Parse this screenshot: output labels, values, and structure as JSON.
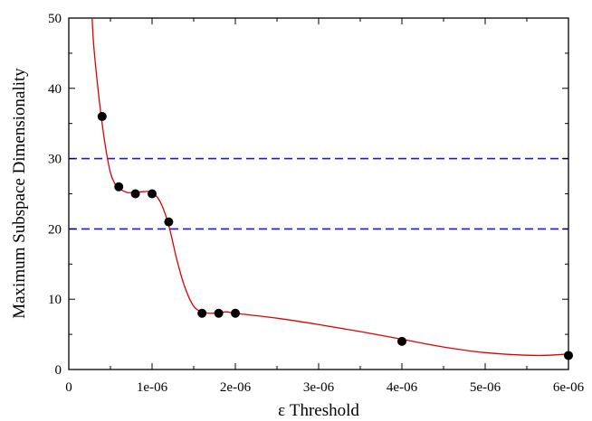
{
  "chart_data": {
    "type": "scatter",
    "xlabel": "ε  Threshold",
    "ylabel": "Maximum Subspace Dimensionality",
    "xlim": [
      0,
      6e-06
    ],
    "ylim": [
      0,
      50
    ],
    "x_ticks": [
      0,
      1e-06,
      2e-06,
      3e-06,
      4e-06,
      5e-06,
      6e-06
    ],
    "x_tick_labels": [
      "0",
      "1e-06",
      "2e-06",
      "3e-06",
      "4e-06",
      "5e-06",
      "6e-06"
    ],
    "y_ticks": [
      0,
      10,
      20,
      30,
      40,
      50
    ],
    "y_tick_labels": [
      "0",
      "10",
      "20",
      "30",
      "40",
      "50"
    ],
    "grid": false,
    "legend": "none",
    "series": [
      {
        "kind": "points",
        "color": "#000000",
        "x": [
          4e-07,
          6e-07,
          8e-07,
          1e-06,
          1.2e-06,
          1.6e-06,
          1.8e-06,
          2e-06,
          4e-06,
          6e-06
        ],
        "y": [
          36,
          26,
          25,
          25,
          21,
          8,
          8,
          8,
          4,
          2
        ]
      },
      {
        "kind": "curve",
        "color": "#e00000",
        "x": [
          2.8e-07,
          3e-07,
          3.5e-07,
          4e-07,
          4.5e-07,
          5e-07,
          5.5e-07,
          6e-07,
          7e-07,
          8e-07,
          9e-07,
          1e-06,
          1.1e-06,
          1.2e-06,
          1.3e-06,
          1.4e-06,
          1.5e-06,
          1.6e-06,
          1.7e-06,
          1.8e-06,
          1.9e-06,
          2e-06,
          2.5e-06,
          3e-06,
          3.5e-06,
          4e-06,
          4.5e-06,
          5e-06,
          5.6e-06,
          6e-06
        ],
        "y": [
          50,
          46,
          40,
          35,
          31,
          28,
          26.5,
          25.8,
          25.2,
          25.2,
          25.3,
          25.2,
          23.8,
          20.5,
          15.5,
          11.5,
          9,
          8.2,
          8,
          8.1,
          8.2,
          8,
          7.3,
          6.4,
          5.4,
          4.3,
          3.2,
          2.4,
          2,
          2.2
        ]
      }
    ],
    "reference_lines": [
      {
        "y": 30,
        "color": "#1a1ad6",
        "style": "dashed"
      },
      {
        "y": 20,
        "color": "#1a1ad6",
        "style": "dashed"
      }
    ]
  }
}
